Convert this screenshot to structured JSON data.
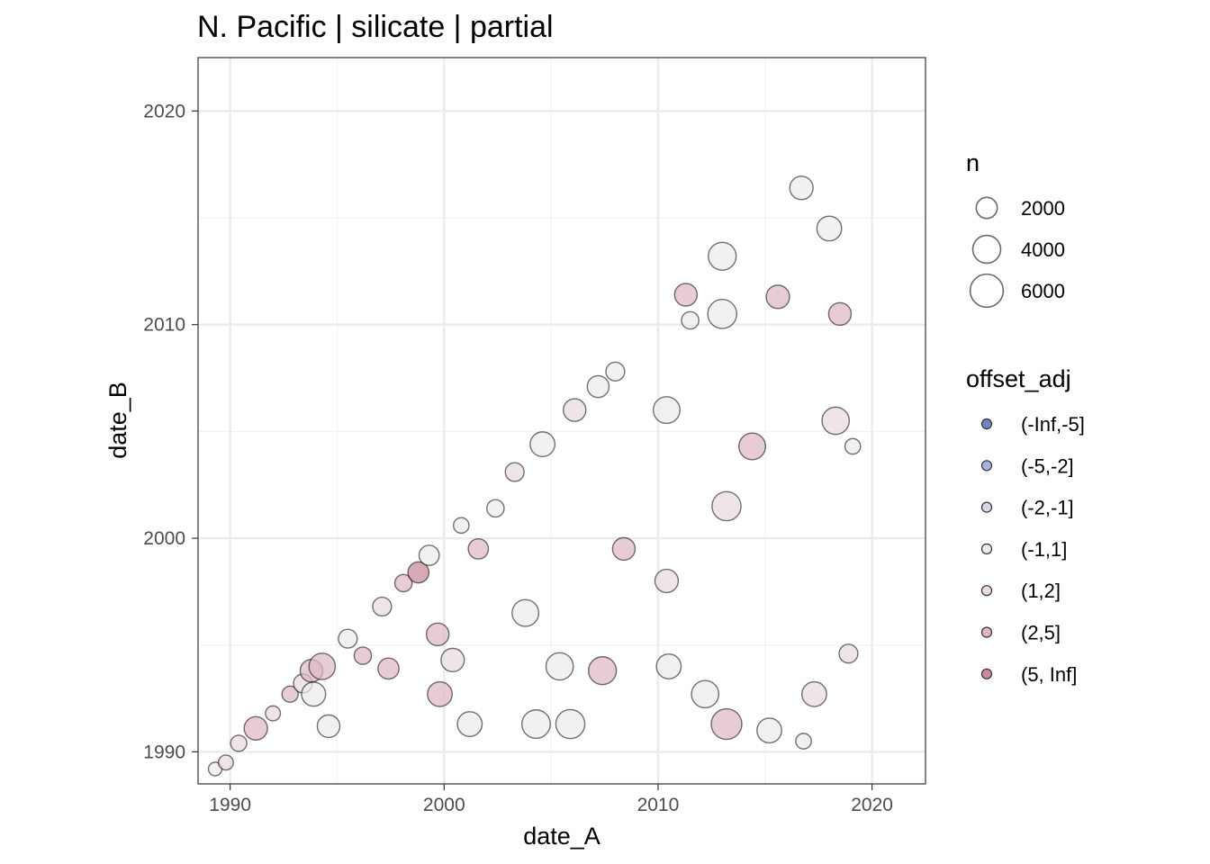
{
  "chart_data": {
    "type": "scatter",
    "title": "N. Pacific | silicate | partial",
    "xlabel": "date_A",
    "ylabel": "date_B",
    "xlim": [
      1988.5,
      2022.5
    ],
    "ylim": [
      1988.5,
      2022.5
    ],
    "x_ticks": [
      "1990",
      "2000",
      "2010",
      "2020"
    ],
    "y_ticks": [
      "1990",
      "2000",
      "2010",
      "2020"
    ],
    "grid": true,
    "size_legend": {
      "title": "n",
      "entries": [
        {
          "label": "2000",
          "value": 2000
        },
        {
          "label": "4000",
          "value": 4000
        },
        {
          "label": "6000",
          "value": 6000
        }
      ]
    },
    "color_legend": {
      "title": "offset_adj",
      "entries": [
        {
          "label": "(-Inf,-5]",
          "color": "#6f86c4"
        },
        {
          "label": "(-5,-2]",
          "color": "#a8b2d6"
        },
        {
          "label": "(-2,-1]",
          "color": "#d7d9e6"
        },
        {
          "label": "(-1,1]",
          "color": "#ececec"
        },
        {
          "label": "(1,2]",
          "color": "#e9dbe0"
        },
        {
          "label": "(2,5]",
          "color": "#deb9c4"
        },
        {
          "label": "(5, Inf]",
          "color": "#c9899a"
        }
      ]
    },
    "series": [
      {
        "x": 1989.3,
        "y": 1989.2,
        "n": 600,
        "offset": "(-1,1]"
      },
      {
        "x": 1989.8,
        "y": 1989.5,
        "n": 800,
        "offset": "(1,2]"
      },
      {
        "x": 1990.4,
        "y": 1990.4,
        "n": 1000,
        "offset": "(1,2]"
      },
      {
        "x": 1991.2,
        "y": 1991.1,
        "n": 2600,
        "offset": "(2,5]"
      },
      {
        "x": 1992.0,
        "y": 1991.8,
        "n": 800,
        "offset": "(1,2]"
      },
      {
        "x": 1992.8,
        "y": 1992.7,
        "n": 1000,
        "offset": "(2,5]"
      },
      {
        "x": 1993.4,
        "y": 1993.2,
        "n": 1500,
        "offset": "(1,2]"
      },
      {
        "x": 1993.8,
        "y": 1993.8,
        "n": 2400,
        "offset": "(2,5]"
      },
      {
        "x": 1994.3,
        "y": 1994.0,
        "n": 3500,
        "offset": "(2,5]"
      },
      {
        "x": 1993.9,
        "y": 1992.7,
        "n": 2800,
        "offset": "(-1,1]"
      },
      {
        "x": 1994.6,
        "y": 1991.2,
        "n": 2400,
        "offset": "(-1,1]"
      },
      {
        "x": 1995.5,
        "y": 1995.3,
        "n": 1500,
        "offset": "(-1,1]"
      },
      {
        "x": 1996.2,
        "y": 1994.5,
        "n": 1200,
        "offset": "(2,5]"
      },
      {
        "x": 1997.1,
        "y": 1996.8,
        "n": 1500,
        "offset": "(1,2]"
      },
      {
        "x": 1997.4,
        "y": 1993.9,
        "n": 2000,
        "offset": "(2,5]"
      },
      {
        "x": 1998.1,
        "y": 1997.9,
        "n": 1200,
        "offset": "(2,5]"
      },
      {
        "x": 1998.8,
        "y": 1998.4,
        "n": 2000,
        "offset": "(5, Inf]"
      },
      {
        "x": 1999.3,
        "y": 1999.2,
        "n": 1800,
        "offset": "(-1,1]"
      },
      {
        "x": 1999.7,
        "y": 1995.5,
        "n": 2400,
        "offset": "(2,5]"
      },
      {
        "x": 1999.8,
        "y": 1992.7,
        "n": 3000,
        "offset": "(2,5]"
      },
      {
        "x": 2000.4,
        "y": 1994.3,
        "n": 2600,
        "offset": "(1,2]"
      },
      {
        "x": 2000.8,
        "y": 2000.6,
        "n": 900,
        "offset": "(-1,1]"
      },
      {
        "x": 2001.2,
        "y": 1991.3,
        "n": 3000,
        "offset": "(-1,1]"
      },
      {
        "x": 2001.6,
        "y": 1999.5,
        "n": 1800,
        "offset": "(2,5]"
      },
      {
        "x": 2002.4,
        "y": 2001.4,
        "n": 1200,
        "offset": "(-1,1]"
      },
      {
        "x": 2003.3,
        "y": 2003.1,
        "n": 1500,
        "offset": "(1,2]"
      },
      {
        "x": 2003.8,
        "y": 1996.5,
        "n": 3600,
        "offset": "(-1,1]"
      },
      {
        "x": 2004.3,
        "y": 1991.3,
        "n": 4200,
        "offset": "(-1,1]"
      },
      {
        "x": 2004.6,
        "y": 2004.4,
        "n": 3000,
        "offset": "(-1,1]"
      },
      {
        "x": 2005.4,
        "y": 1994.0,
        "n": 3800,
        "offset": "(-1,1]"
      },
      {
        "x": 2005.9,
        "y": 1991.3,
        "n": 4400,
        "offset": "(-1,1]"
      },
      {
        "x": 2006.1,
        "y": 2006.0,
        "n": 2400,
        "offset": "(1,2]"
      },
      {
        "x": 2007.2,
        "y": 2007.1,
        "n": 2200,
        "offset": "(-1,1]"
      },
      {
        "x": 2007.4,
        "y": 1993.8,
        "n": 4000,
        "offset": "(2,5]"
      },
      {
        "x": 2008.0,
        "y": 2007.8,
        "n": 1500,
        "offset": "(-1,1]"
      },
      {
        "x": 2008.4,
        "y": 1999.5,
        "n": 2400,
        "offset": "(2,5]"
      },
      {
        "x": 2010.4,
        "y": 2006.0,
        "n": 3600,
        "offset": "(-1,1]"
      },
      {
        "x": 2010.5,
        "y": 1994.0,
        "n": 3000,
        "offset": "(-1,1]"
      },
      {
        "x": 2010.4,
        "y": 1998.0,
        "n": 2600,
        "offset": "(1,2]"
      },
      {
        "x": 2011.5,
        "y": 2010.2,
        "n": 1200,
        "offset": "(-1,1]"
      },
      {
        "x": 2011.3,
        "y": 2011.4,
        "n": 2400,
        "offset": "(2,5]"
      },
      {
        "x": 2012.2,
        "y": 1992.7,
        "n": 3800,
        "offset": "(-1,1]"
      },
      {
        "x": 2013.0,
        "y": 2010.5,
        "n": 4400,
        "offset": "(-1,1]"
      },
      {
        "x": 2013.0,
        "y": 2013.2,
        "n": 4000,
        "offset": "(-1,1]"
      },
      {
        "x": 2013.2,
        "y": 1991.3,
        "n": 5000,
        "offset": "(2,5]"
      },
      {
        "x": 2013.2,
        "y": 2001.5,
        "n": 4400,
        "offset": "(1,2]"
      },
      {
        "x": 2014.4,
        "y": 2004.3,
        "n": 3600,
        "offset": "(2,5]"
      },
      {
        "x": 2015.2,
        "y": 1991.0,
        "n": 3000,
        "offset": "(-1,1]"
      },
      {
        "x": 2015.6,
        "y": 2011.3,
        "n": 2600,
        "offset": "(2,5]"
      },
      {
        "x": 2016.7,
        "y": 2016.4,
        "n": 2600,
        "offset": "(-1,1]"
      },
      {
        "x": 2016.8,
        "y": 1990.5,
        "n": 900,
        "offset": "(-1,1]"
      },
      {
        "x": 2017.3,
        "y": 1992.7,
        "n": 3000,
        "offset": "(1,2]"
      },
      {
        "x": 2018.0,
        "y": 2014.5,
        "n": 3000,
        "offset": "(-1,1]"
      },
      {
        "x": 2018.3,
        "y": 2005.5,
        "n": 3800,
        "offset": "(1,2]"
      },
      {
        "x": 2018.5,
        "y": 2010.5,
        "n": 2400,
        "offset": "(2,5]"
      },
      {
        "x": 2018.9,
        "y": 1994.6,
        "n": 1500,
        "offset": "(1,2]"
      },
      {
        "x": 2019.1,
        "y": 2004.3,
        "n": 900,
        "offset": "(-1,1]"
      }
    ]
  }
}
